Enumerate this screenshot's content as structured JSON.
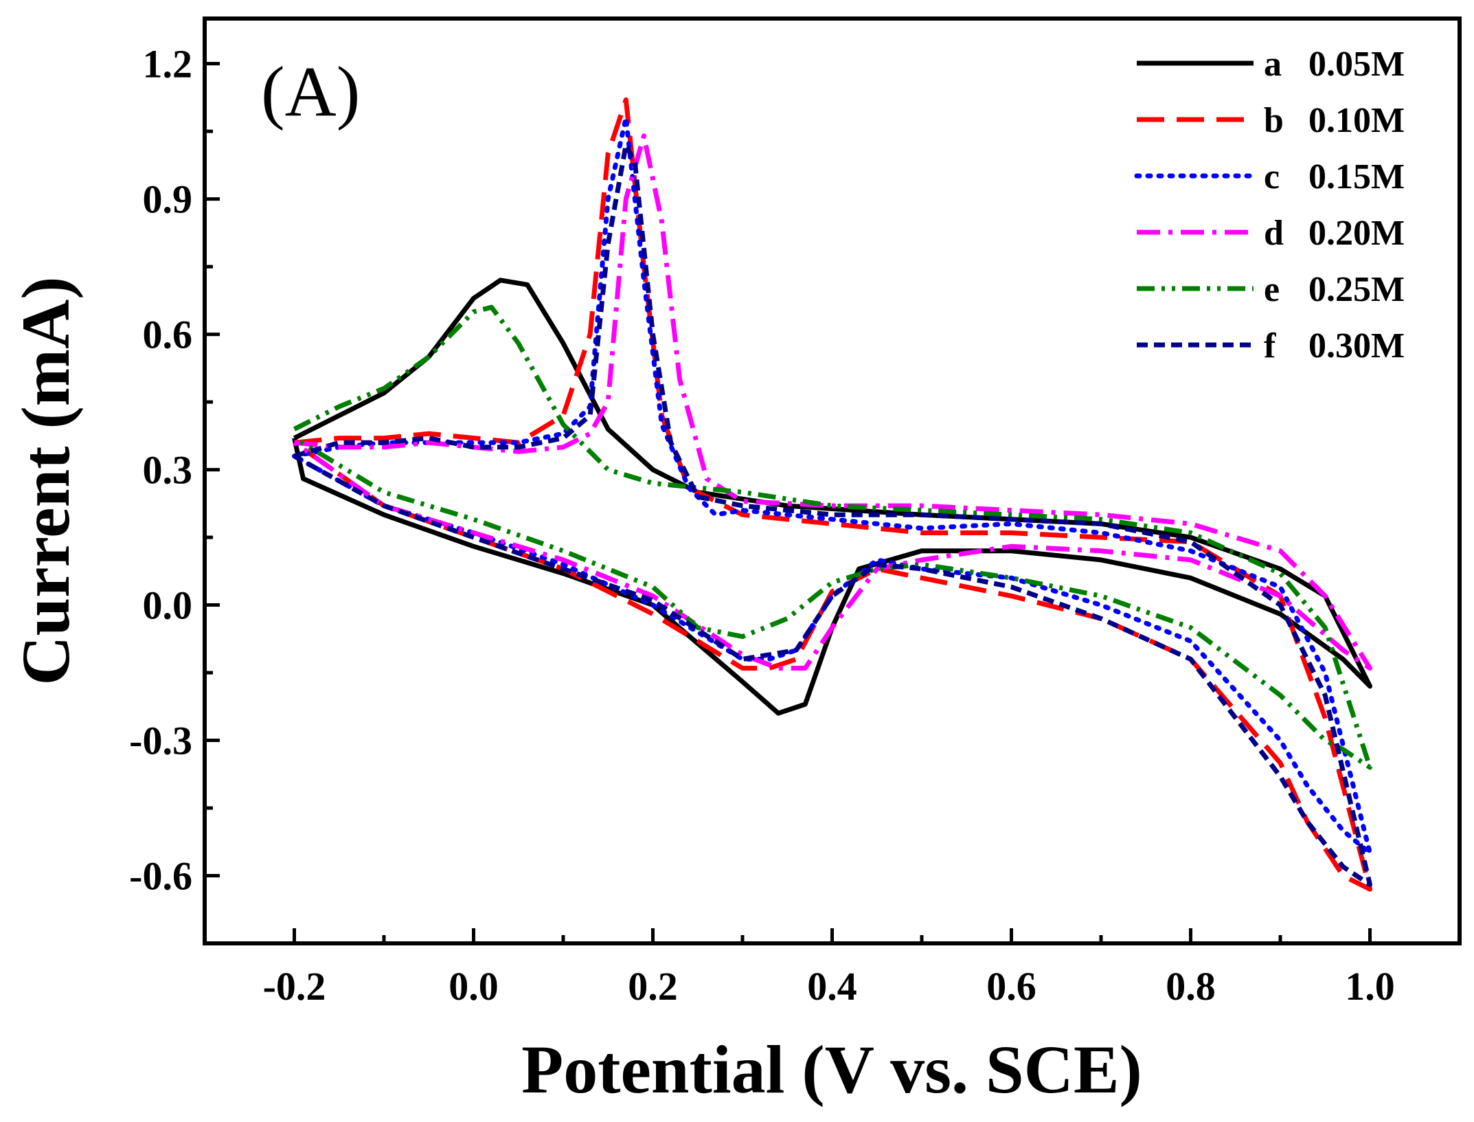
{
  "chart_data": {
    "type": "line",
    "panel_label": "(A)",
    "xlabel": "Potential (V vs. SCE)",
    "ylabel": "Current (mA)",
    "xlim": [
      -0.3,
      1.1
    ],
    "ylim": [
      -0.75,
      1.3
    ],
    "xticks": [
      -0.2,
      0.0,
      0.2,
      0.4,
      0.6,
      0.8,
      1.0
    ],
    "xtick_labels": [
      "-0.2",
      "0.0",
      "0.2",
      "0.4",
      "0.6",
      "0.8",
      "1.0"
    ],
    "xminor": [
      -0.3,
      -0.1,
      0.1,
      0.3,
      0.5,
      0.7,
      0.9,
      1.1
    ],
    "yticks": [
      -0.6,
      -0.3,
      0.0,
      0.3,
      0.6,
      0.9,
      1.2
    ],
    "ytick_labels": [
      "-0.6",
      "-0.3",
      "0.0",
      "0.3",
      "0.6",
      "0.9",
      "1.2"
    ],
    "yminor": [
      -0.75,
      -0.45,
      -0.15,
      0.15,
      0.45,
      0.75,
      1.05
    ],
    "grid": false,
    "legend_position": "top-right",
    "series": [
      {
        "letter": "a",
        "name": "0.05M",
        "color": "#000000",
        "dash": "solid",
        "x": [
          -0.2,
          -0.15,
          -0.1,
          -0.05,
          0.0,
          0.03,
          0.06,
          0.1,
          0.15,
          0.2,
          0.25,
          0.35,
          0.5,
          0.6,
          0.7,
          0.8,
          0.9,
          0.95,
          1.0,
          0.97,
          0.9,
          0.8,
          0.7,
          0.6,
          0.5,
          0.43,
          0.4,
          0.37,
          0.34,
          0.3,
          0.2,
          0.1,
          0.0,
          -0.1,
          -0.19,
          -0.2
        ],
        "y": [
          0.37,
          0.42,
          0.47,
          0.55,
          0.68,
          0.72,
          0.71,
          0.58,
          0.39,
          0.3,
          0.25,
          0.22,
          0.2,
          0.19,
          0.18,
          0.15,
          0.08,
          0.02,
          -0.18,
          -0.12,
          -0.02,
          0.06,
          0.1,
          0.12,
          0.12,
          0.08,
          -0.05,
          -0.22,
          -0.24,
          -0.17,
          0.0,
          0.07,
          0.13,
          0.2,
          0.28,
          0.37
        ]
      },
      {
        "letter": "b",
        "name": "0.10M",
        "color": "#ff0000",
        "dash": "long-dash",
        "x": [
          -0.2,
          -0.15,
          -0.1,
          -0.05,
          0.0,
          0.05,
          0.1,
          0.13,
          0.15,
          0.17,
          0.19,
          0.21,
          0.24,
          0.3,
          0.4,
          0.5,
          0.6,
          0.7,
          0.8,
          0.9,
          0.95,
          1.0,
          0.97,
          0.93,
          0.9,
          0.8,
          0.7,
          0.6,
          0.5,
          0.45,
          0.4,
          0.36,
          0.33,
          0.3,
          0.2,
          0.1,
          0.0,
          -0.1,
          -0.2
        ],
        "y": [
          0.36,
          0.37,
          0.37,
          0.38,
          0.37,
          0.36,
          0.42,
          0.6,
          1.0,
          1.12,
          0.75,
          0.42,
          0.26,
          0.2,
          0.18,
          0.16,
          0.16,
          0.15,
          0.14,
          0.02,
          -0.25,
          -0.63,
          -0.6,
          -0.48,
          -0.35,
          -0.12,
          -0.03,
          0.02,
          0.06,
          0.08,
          0.03,
          -0.12,
          -0.14,
          -0.14,
          -0.02,
          0.08,
          0.15,
          0.22,
          0.36
        ]
      },
      {
        "letter": "c",
        "name": "0.15M",
        "color": "#0000ff",
        "dash": "dot",
        "x": [
          -0.2,
          -0.15,
          -0.1,
          -0.05,
          0.0,
          0.05,
          0.1,
          0.13,
          0.15,
          0.17,
          0.19,
          0.21,
          0.24,
          0.27,
          0.3,
          0.4,
          0.5,
          0.6,
          0.7,
          0.8,
          0.9,
          0.95,
          1.0,
          0.97,
          0.93,
          0.9,
          0.8,
          0.7,
          0.6,
          0.5,
          0.45,
          0.4,
          0.36,
          0.33,
          0.3,
          0.2,
          0.1,
          0.0,
          -0.1,
          -0.2
        ],
        "y": [
          0.33,
          0.35,
          0.36,
          0.36,
          0.36,
          0.36,
          0.38,
          0.44,
          0.9,
          1.08,
          0.72,
          0.4,
          0.26,
          0.2,
          0.21,
          0.19,
          0.17,
          0.18,
          0.16,
          0.12,
          0.04,
          -0.15,
          -0.55,
          -0.5,
          -0.4,
          -0.3,
          -0.08,
          0.0,
          0.06,
          0.08,
          0.1,
          0.02,
          -0.1,
          -0.12,
          -0.12,
          0.0,
          0.09,
          0.16,
          0.22,
          0.33
        ]
      },
      {
        "letter": "d",
        "name": "0.20M",
        "color": "#ff00ff",
        "dash": "dash-dot",
        "x": [
          -0.2,
          -0.15,
          -0.1,
          -0.05,
          0.0,
          0.05,
          0.1,
          0.13,
          0.15,
          0.17,
          0.19,
          0.21,
          0.23,
          0.26,
          0.3,
          0.4,
          0.5,
          0.6,
          0.7,
          0.8,
          0.9,
          0.95,
          1.0,
          0.97,
          0.9,
          0.8,
          0.7,
          0.6,
          0.5,
          0.45,
          0.4,
          0.37,
          0.34,
          0.3,
          0.2,
          0.1,
          0.0,
          -0.1,
          -0.2
        ],
        "y": [
          0.36,
          0.35,
          0.35,
          0.36,
          0.35,
          0.34,
          0.35,
          0.38,
          0.45,
          0.9,
          1.04,
          0.85,
          0.5,
          0.28,
          0.23,
          0.22,
          0.22,
          0.21,
          0.2,
          0.18,
          0.12,
          0.02,
          -0.14,
          -0.1,
          0.02,
          0.1,
          0.12,
          0.13,
          0.1,
          0.08,
          -0.05,
          -0.14,
          -0.14,
          -0.11,
          0.02,
          0.1,
          0.16,
          0.22,
          0.36
        ]
      },
      {
        "letter": "e",
        "name": "0.25M",
        "color": "#008000",
        "dash": "dash-dot-dot",
        "x": [
          -0.2,
          -0.15,
          -0.1,
          -0.05,
          0.0,
          0.02,
          0.05,
          0.1,
          0.15,
          0.2,
          0.25,
          0.3,
          0.4,
          0.5,
          0.6,
          0.7,
          0.8,
          0.9,
          0.95,
          1.0,
          0.97,
          0.95,
          0.9,
          0.8,
          0.7,
          0.6,
          0.5,
          0.45,
          0.4,
          0.35,
          0.3,
          0.25,
          0.2,
          0.1,
          0.0,
          -0.1,
          -0.2
        ],
        "y": [
          0.39,
          0.44,
          0.48,
          0.55,
          0.65,
          0.66,
          0.58,
          0.4,
          0.3,
          0.27,
          0.26,
          0.25,
          0.22,
          0.21,
          0.2,
          0.19,
          0.16,
          0.07,
          -0.05,
          -0.36,
          -0.32,
          -0.3,
          -0.2,
          -0.05,
          0.02,
          0.06,
          0.09,
          0.08,
          0.05,
          -0.03,
          -0.07,
          -0.05,
          0.04,
          0.12,
          0.19,
          0.25,
          0.37
        ]
      },
      {
        "letter": "f",
        "name": "0.30M",
        "color": "#00008b",
        "dash": "short-dash",
        "x": [
          -0.2,
          -0.15,
          -0.1,
          -0.05,
          0.0,
          0.05,
          0.1,
          0.13,
          0.15,
          0.17,
          0.18,
          0.2,
          0.22,
          0.25,
          0.3,
          0.4,
          0.5,
          0.6,
          0.7,
          0.8,
          0.9,
          0.95,
          1.0,
          0.97,
          0.93,
          0.9,
          0.8,
          0.7,
          0.6,
          0.5,
          0.45,
          0.4,
          0.36,
          0.33,
          0.3,
          0.2,
          0.1,
          0.0,
          -0.1,
          -0.2
        ],
        "y": [
          0.33,
          0.36,
          0.36,
          0.37,
          0.35,
          0.35,
          0.37,
          0.42,
          0.8,
          1.02,
          0.98,
          0.6,
          0.36,
          0.24,
          0.22,
          0.2,
          0.2,
          0.19,
          0.18,
          0.14,
          0.0,
          -0.2,
          -0.62,
          -0.58,
          -0.48,
          -0.38,
          -0.12,
          -0.03,
          0.04,
          0.08,
          0.09,
          0.02,
          -0.1,
          -0.11,
          -0.12,
          0.01,
          0.08,
          0.15,
          0.22,
          0.33
        ]
      }
    ]
  }
}
